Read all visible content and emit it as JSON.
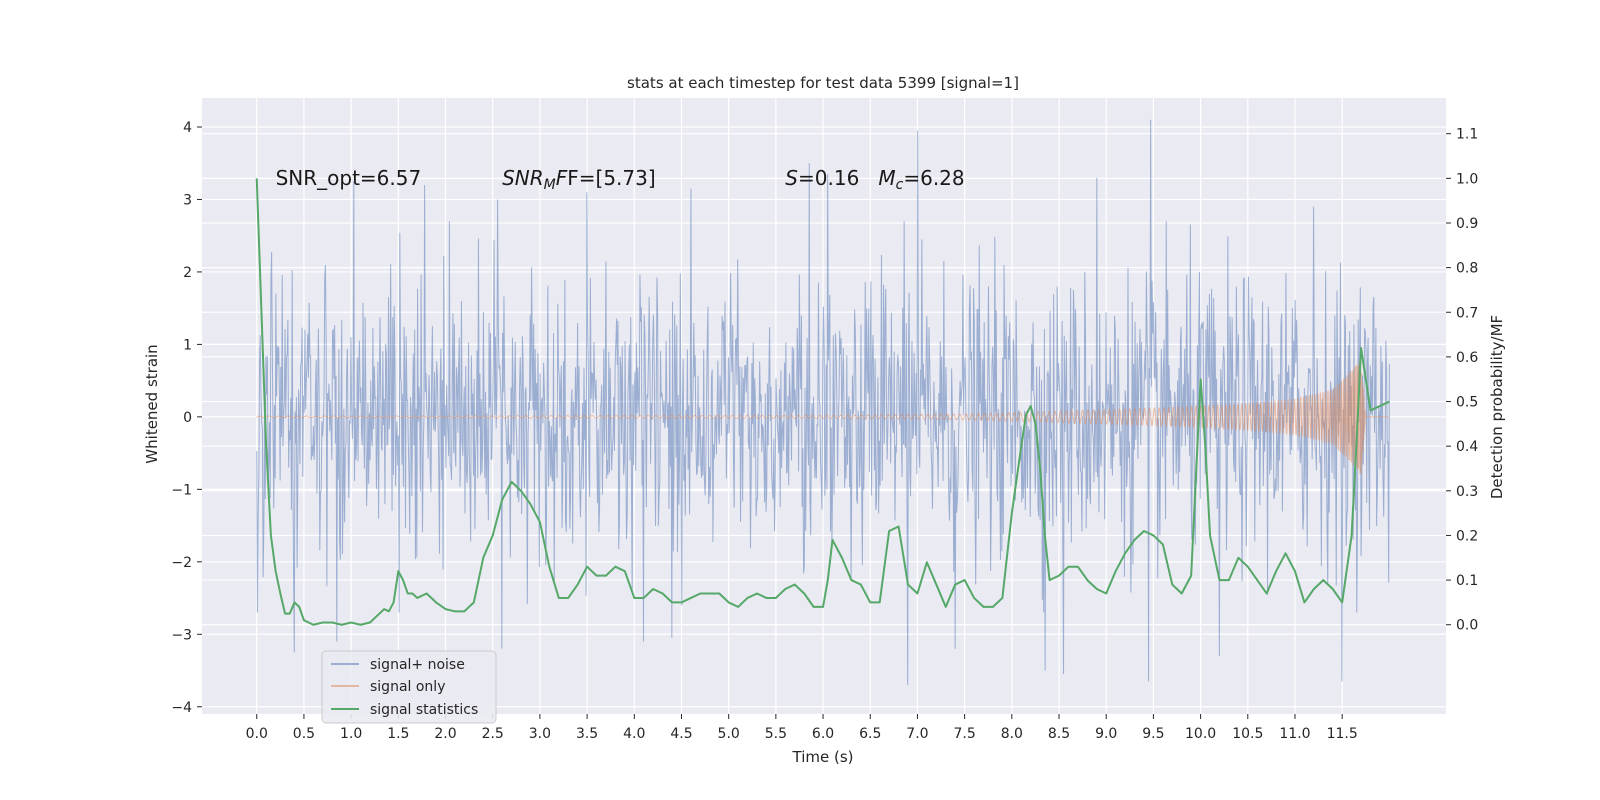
{
  "chart_data": {
    "type": "line",
    "title": "stats at each timestep for test data 5399 [signal=1]",
    "xlabel": "Time (s)",
    "ylabel_left": "Whitened strain",
    "ylabel_right": "Detection probability/MF",
    "xlim": [
      -0.58,
      12.6
    ],
    "ylim_left": [
      -4.1,
      4.4
    ],
    "ylim_right": [
      -0.2,
      1.18
    ],
    "x_ticks": [
      "0.0",
      "0.5",
      "1.0",
      "1.5",
      "2.0",
      "2.5",
      "3.0",
      "3.5",
      "4.0",
      "4.5",
      "5.0",
      "5.5",
      "6.0",
      "6.5",
      "7.0",
      "7.5",
      "8.0",
      "8.5",
      "9.0",
      "9.5",
      "10.0",
      "10.5",
      "11.0",
      "11.5"
    ],
    "y_ticks_left": [
      -4,
      -3,
      -2,
      -1,
      0,
      1,
      2,
      3,
      4
    ],
    "y_ticks_right": [
      "0.0",
      "0.1",
      "0.2",
      "0.3",
      "0.4",
      "0.5",
      "0.6",
      "0.7",
      "0.8",
      "0.9",
      "1.0",
      "1.1"
    ],
    "grid": true,
    "annotations": [
      {
        "id": "snr-opt",
        "text": "SNR_opt=6.57",
        "x": 0.2,
        "y": 3.2
      },
      {
        "id": "snr-mf",
        "prefix": "SNR",
        "sub": "M",
        "suffix": "F=[5.73]",
        "x": 2.6,
        "y": 3.2
      },
      {
        "id": "s-mc",
        "part1": "S",
        "part2": "=0.16   ",
        "part3": "M",
        "sub": "c",
        "part4": "=6.28",
        "x": 5.6,
        "y": 3.2
      }
    ],
    "legend": {
      "placement": "lower-left",
      "entries": [
        "signal+ noise",
        "signal only",
        "signal statistics"
      ]
    },
    "series": [
      {
        "name": "signal+ noise",
        "axis": "left",
        "color": "#4c72b0",
        "kind": "noise",
        "x_range": [
          0.0,
          12.0
        ],
        "envelope": [
          -2.2,
          2.2
        ],
        "peaks": [
          {
            "x": 1.03,
            "y": 3.25
          },
          {
            "x": 1.78,
            "y": 3.2
          },
          {
            "x": 2.55,
            "y": 3.0
          },
          {
            "x": 3.5,
            "y": 3.1
          },
          {
            "x": 4.6,
            "y": 3.15
          },
          {
            "x": 5.85,
            "y": 3.5
          },
          {
            "x": 6.05,
            "y": 3.35
          },
          {
            "x": 7.0,
            "y": 3.95
          },
          {
            "x": 8.9,
            "y": 3.3
          },
          {
            "x": 9.47,
            "y": 4.1
          },
          {
            "x": 11.2,
            "y": 2.9
          },
          {
            "x": 0.4,
            "y": -3.25
          },
          {
            "x": 2.6,
            "y": -3.2
          },
          {
            "x": 6.9,
            "y": -3.7
          },
          {
            "x": 7.4,
            "y": -3.2
          },
          {
            "x": 8.35,
            "y": -3.5
          },
          {
            "x": 8.55,
            "y": -3.55
          },
          {
            "x": 9.45,
            "y": -3.65
          },
          {
            "x": 10.2,
            "y": -3.3
          },
          {
            "x": 11.5,
            "y": -3.65
          },
          {
            "x": 4.1,
            "y": -3.1
          },
          {
            "x": 4.4,
            "y": -3.05
          },
          {
            "x": 0.85,
            "y": -3.1
          }
        ]
      },
      {
        "name": "signal only",
        "axis": "left",
        "color": "#dd8452",
        "kind": "chirp",
        "x_range": [
          0.0,
          12.0
        ],
        "amplitude": [
          [
            0.0,
            0.01
          ],
          [
            6.0,
            0.02
          ],
          [
            7.5,
            0.04
          ],
          [
            8.5,
            0.08
          ],
          [
            9.5,
            0.12
          ],
          [
            10.5,
            0.18
          ],
          [
            11.0,
            0.25
          ],
          [
            11.4,
            0.38
          ],
          [
            11.6,
            0.65
          ],
          [
            11.7,
            0.8
          ],
          [
            11.75,
            0.0
          ]
        ]
      },
      {
        "name": "signal statistics",
        "axis": "right",
        "color": "#55a868",
        "kind": "line",
        "x": [
          0.0,
          0.05,
          0.1,
          0.15,
          0.2,
          0.25,
          0.3,
          0.35,
          0.4,
          0.45,
          0.5,
          0.6,
          0.7,
          0.8,
          0.9,
          1.0,
          1.1,
          1.2,
          1.3,
          1.35,
          1.4,
          1.45,
          1.5,
          1.55,
          1.6,
          1.65,
          1.7,
          1.8,
          1.9,
          2.0,
          2.1,
          2.2,
          2.3,
          2.4,
          2.5,
          2.6,
          2.7,
          2.8,
          2.9,
          3.0,
          3.1,
          3.2,
          3.3,
          3.4,
          3.5,
          3.6,
          3.7,
          3.8,
          3.9,
          4.0,
          4.1,
          4.2,
          4.3,
          4.4,
          4.5,
          4.6,
          4.7,
          4.8,
          4.9,
          5.0,
          5.1,
          5.2,
          5.3,
          5.4,
          5.5,
          5.6,
          5.7,
          5.8,
          5.9,
          6.0,
          6.05,
          6.1,
          6.2,
          6.3,
          6.4,
          6.5,
          6.6,
          6.7,
          6.8,
          6.9,
          7.0,
          7.1,
          7.2,
          7.3,
          7.4,
          7.5,
          7.6,
          7.7,
          7.8,
          7.9,
          8.0,
          8.1,
          8.15,
          8.2,
          8.25,
          8.3,
          8.35,
          8.4,
          8.5,
          8.6,
          8.7,
          8.8,
          8.9,
          9.0,
          9.1,
          9.2,
          9.3,
          9.4,
          9.5,
          9.6,
          9.7,
          9.8,
          9.9,
          10.0,
          10.05,
          10.1,
          10.2,
          10.3,
          10.4,
          10.5,
          10.6,
          10.7,
          10.8,
          10.9,
          11.0,
          11.1,
          11.2,
          11.3,
          11.4,
          11.5,
          11.6,
          11.65,
          11.7,
          11.75,
          11.8,
          11.9,
          12.0
        ],
        "y": [
          1.0,
          0.7,
          0.4,
          0.2,
          0.12,
          0.07,
          0.025,
          0.025,
          0.05,
          0.04,
          0.01,
          0.0,
          0.005,
          0.005,
          0.0,
          0.005,
          0.0,
          0.005,
          0.025,
          0.035,
          0.03,
          0.05,
          0.12,
          0.1,
          0.07,
          0.07,
          0.06,
          0.07,
          0.05,
          0.035,
          0.03,
          0.03,
          0.05,
          0.15,
          0.2,
          0.28,
          0.32,
          0.3,
          0.27,
          0.23,
          0.13,
          0.06,
          0.06,
          0.09,
          0.13,
          0.11,
          0.11,
          0.13,
          0.12,
          0.06,
          0.06,
          0.08,
          0.07,
          0.05,
          0.05,
          0.06,
          0.07,
          0.07,
          0.07,
          0.05,
          0.04,
          0.06,
          0.07,
          0.06,
          0.06,
          0.08,
          0.09,
          0.07,
          0.04,
          0.04,
          0.1,
          0.19,
          0.15,
          0.1,
          0.09,
          0.05,
          0.05,
          0.21,
          0.22,
          0.09,
          0.07,
          0.14,
          0.09,
          0.04,
          0.09,
          0.1,
          0.06,
          0.04,
          0.04,
          0.06,
          0.25,
          0.4,
          0.47,
          0.49,
          0.45,
          0.35,
          0.2,
          0.1,
          0.11,
          0.13,
          0.13,
          0.1,
          0.08,
          0.07,
          0.12,
          0.16,
          0.19,
          0.21,
          0.2,
          0.18,
          0.09,
          0.07,
          0.11,
          0.55,
          0.4,
          0.2,
          0.1,
          0.1,
          0.15,
          0.13,
          0.1,
          0.07,
          0.12,
          0.16,
          0.12,
          0.05,
          0.08,
          0.1,
          0.08,
          0.05,
          0.2,
          0.4,
          0.62,
          0.55,
          0.48,
          0.49,
          0.5
        ]
      }
    ]
  }
}
